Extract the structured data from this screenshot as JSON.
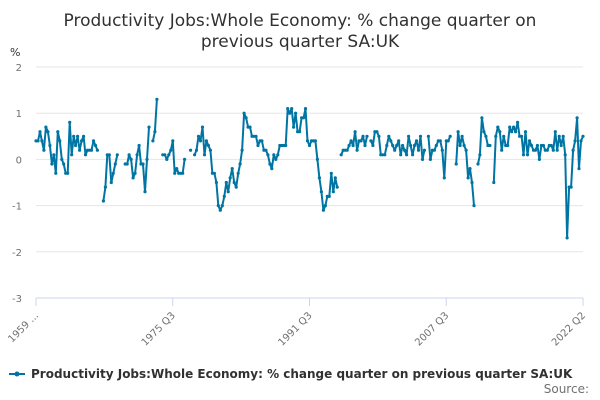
{
  "chart_data": {
    "type": "line",
    "title": "Productivity Jobs:Whole Economy: % change quarter on previous quarter SA:UK",
    "title_lines": [
      "Productivity Jobs:Whole Economy: % change quarter on",
      "previous quarter SA:UK"
    ],
    "unit_label": "%",
    "ylim": [
      -3,
      2
    ],
    "y_ticks": [
      2,
      1,
      0,
      -1,
      -2,
      -3
    ],
    "x_ticks": [
      "1959 ...",
      "1975 Q3",
      "1991 Q3",
      "2007 Q3",
      "2022 Q2"
    ],
    "grid": true,
    "legend_position": "bottom",
    "source_label": "Source:",
    "series": [
      {
        "name": "Productivity Jobs:Whole Economy: % change quarter on previous quarter SA:UK",
        "color": "#0075a3",
        "values": [
          0.4,
          0.4,
          0.6,
          0.4,
          0.2,
          0.7,
          0.6,
          0.3,
          -0.1,
          0.1,
          -0.3,
          0.6,
          0.4,
          0.0,
          -0.1,
          -0.3,
          -0.3,
          0.8,
          0.1,
          0.5,
          0.3,
          0.5,
          0.2,
          0.4,
          0.5,
          0.1,
          0.2,
          0.2,
          0.2,
          0.4,
          0.3,
          0.2,
          null,
          null,
          -0.9,
          -0.6,
          0.1,
          0.1,
          -0.5,
          -0.3,
          -0.1,
          0.1,
          null,
          null,
          null,
          -0.1,
          -0.1,
          0.1,
          0.0,
          -0.4,
          -0.3,
          0.1,
          0.3,
          -0.1,
          -0.1,
          -0.7,
          0.0,
          0.7,
          null,
          0.4,
          0.6,
          1.3,
          null,
          null,
          0.1,
          0.1,
          0.0,
          0.1,
          0.2,
          0.4,
          -0.3,
          -0.2,
          -0.3,
          -0.3,
          -0.3,
          0.0,
          null,
          null,
          0.2,
          null,
          0.1,
          0.2,
          0.5,
          0.4,
          0.7,
          0.1,
          0.4,
          0.3,
          0.2,
          -0.3,
          -0.3,
          -0.5,
          -1.0,
          -1.1,
          -1.0,
          -0.8,
          -0.5,
          -0.7,
          -0.4,
          -0.2,
          -0.5,
          -0.6,
          -0.3,
          -0.1,
          0.2,
          1.0,
          0.9,
          0.7,
          0.7,
          0.5,
          0.5,
          0.5,
          0.3,
          0.4,
          0.4,
          0.2,
          0.2,
          0.1,
          -0.1,
          -0.2,
          0.1,
          0.0,
          0.1,
          0.3,
          0.3,
          0.3,
          0.3,
          1.1,
          1.0,
          1.1,
          0.7,
          1.0,
          0.6,
          0.6,
          0.9,
          0.9,
          1.1,
          0.4,
          0.3,
          0.4,
          0.4,
          0.4,
          0.0,
          -0.4,
          -0.7,
          -1.1,
          -1.0,
          -0.8,
          -0.8,
          -0.3,
          -0.7,
          -0.4,
          -0.6,
          null,
          0.1,
          0.2,
          0.2,
          0.2,
          0.3,
          0.4,
          0.3,
          0.6,
          0.2,
          0.4,
          0.4,
          0.5,
          0.3,
          0.5,
          null,
          0.4,
          0.3,
          0.6,
          0.6,
          0.5,
          0.1,
          0.1,
          0.1,
          0.3,
          0.5,
          0.4,
          0.3,
          0.2,
          0.3,
          0.4,
          0.1,
          0.3,
          0.2,
          0.1,
          0.5,
          0.3,
          0.1,
          0.3,
          0.4,
          0.2,
          0.5,
          0.0,
          0.2,
          null,
          0.5,
          0.0,
          0.2,
          0.2,
          0.3,
          0.4,
          0.4,
          0.2,
          -0.4,
          0.4,
          0.4,
          0.5,
          null,
          null,
          -0.1,
          0.6,
          0.3,
          0.5,
          0.3,
          0.2,
          -0.4,
          -0.2,
          -0.5,
          -1.0,
          null,
          -0.1,
          0.1,
          0.9,
          0.6,
          0.5,
          0.3,
          0.3,
          null,
          -0.5,
          0.5,
          0.7,
          0.6,
          0.2,
          0.5,
          0.3,
          0.3,
          0.7,
          0.6,
          0.7,
          0.6,
          0.8,
          0.5,
          0.5,
          0.1,
          0.6,
          0.1,
          0.4,
          0.3,
          0.2,
          0.2,
          0.3,
          0.0,
          0.3,
          0.3,
          0.2,
          0.2,
          0.3,
          0.3,
          0.2,
          0.6,
          0.2,
          0.5,
          0.3,
          0.5,
          0.1,
          -1.7,
          -0.6,
          -0.6,
          0.2,
          0.4,
          0.9,
          -0.2,
          0.4,
          0.5
        ]
      }
    ]
  }
}
